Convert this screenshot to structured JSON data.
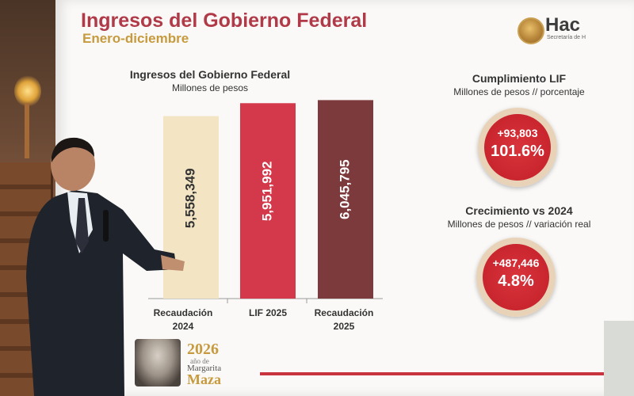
{
  "header": {
    "title": "Ingresos del Gobierno Federal",
    "subtitle": "Enero-diciembre"
  },
  "logo": {
    "text": "Hac",
    "subtext": "Secretaría de H",
    "icon": "eagle-emblem-icon"
  },
  "chart_data": {
    "type": "bar",
    "title": "Ingresos del Gobierno Federal",
    "subtitle": "Millones de pesos",
    "categories": [
      "Recaudación 2024",
      "LIF 2025",
      "Recaudación 2025"
    ],
    "values": [
      5558349,
      5951992,
      6045795
    ],
    "value_labels": [
      "5,558,349",
      "5,951,992",
      "6,045,795"
    ],
    "colors": [
      "#f3e5c4",
      "#d3394a",
      "#7d3a3c"
    ],
    "ylim": [
      0,
      6200000
    ],
    "legend": "none",
    "grid": false
  },
  "kpis": [
    {
      "title": "Cumplimiento LIF",
      "unit": "Millones de pesos // porcentaje",
      "delta": "+93,803",
      "pct": "101.6%"
    },
    {
      "title": "Crecimiento vs 2024",
      "unit": "Millones de pesos // variación real",
      "delta": "+487,446",
      "pct": "4.8%"
    }
  ],
  "footer": {
    "year": "2026",
    "year_caption": "año de",
    "name_first": "Margarita",
    "name_last": "Maza"
  },
  "colors": {
    "title": "#b03a48",
    "subtitle": "#c79a3e",
    "kpi_circle": "#c9252e",
    "kpi_ring": "#e9d3b8",
    "accent_line": "#c9353f"
  }
}
